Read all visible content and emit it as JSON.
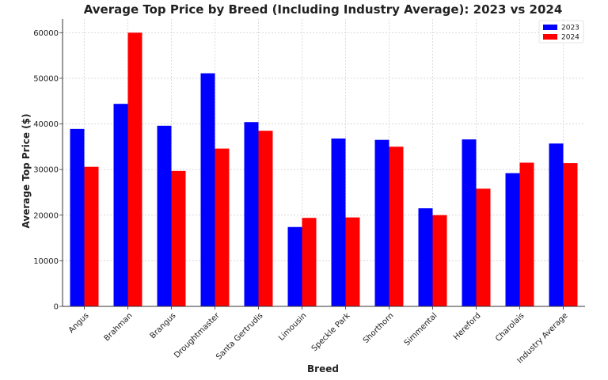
{
  "chart_data": {
    "type": "bar",
    "title": "Average Top Price by Breed (Including Industry Average): 2023 vs 2024",
    "xlabel": "Breed",
    "ylabel": "Average Top Price ($)",
    "ylim": [
      0,
      63000
    ],
    "yticks": [
      0,
      10000,
      20000,
      30000,
      40000,
      50000,
      60000
    ],
    "grid": true,
    "legend_position": "top-right",
    "categories": [
      "Angus",
      "Brahman",
      "Brangus",
      "Droughtmaster",
      "Santa Gertrudis",
      "Limousin",
      "Speckle Park",
      "Shorthorn",
      "Simmental",
      "Hereford",
      "Charolais",
      "Industry Average"
    ],
    "series": [
      {
        "name": "2023",
        "color": "#0000ff",
        "values": [
          38900,
          44400,
          39600,
          51100,
          40400,
          17400,
          36800,
          36500,
          21500,
          36600,
          29200,
          35700
        ]
      },
      {
        "name": "2024",
        "color": "#ff0000",
        "values": [
          30600,
          60000,
          29700,
          34600,
          38500,
          19400,
          19500,
          35000,
          20000,
          25800,
          31500,
          31400
        ]
      }
    ]
  }
}
